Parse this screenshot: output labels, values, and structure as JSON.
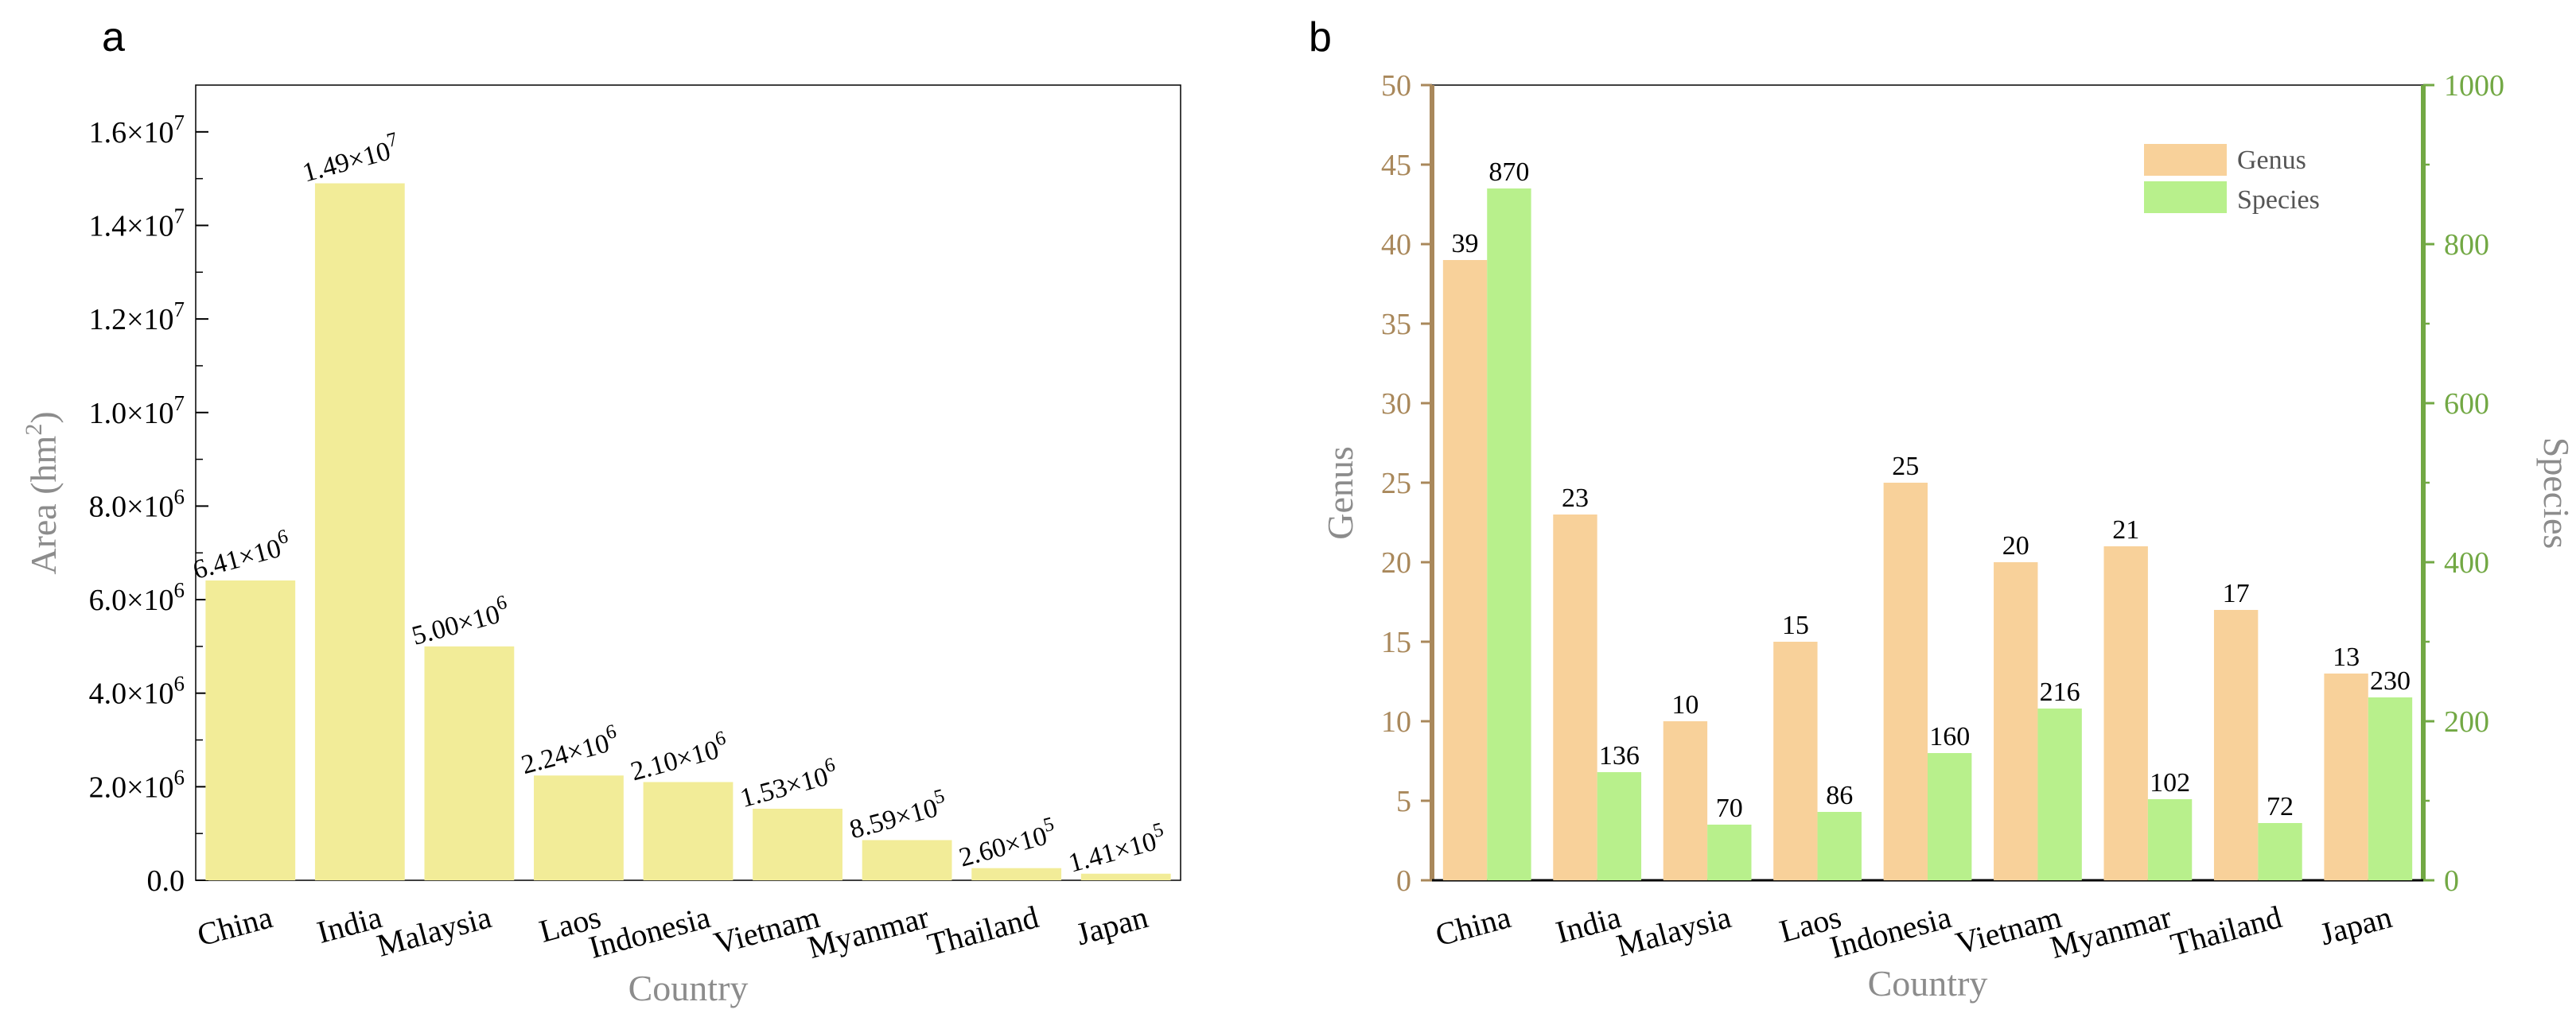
{
  "colors": {
    "area_bar": "#f2ec98",
    "genus_bar": "#f8d19a",
    "species_bar": "#b8f08c",
    "genus_axis": "#a9885b",
    "species_axis": "#72a844",
    "axis_title": "#8c8c8c"
  },
  "chart_data": [
    {
      "panel": "a",
      "type": "bar",
      "xlabel": "Country",
      "ylabel": "Area (hm²)",
      "ylim": [
        0,
        17000000
      ],
      "yticks": [
        {
          "value": 0,
          "label": "0.0",
          "exp": ""
        },
        {
          "value": 2000000,
          "label": "2.0×10",
          "exp": "6"
        },
        {
          "value": 4000000,
          "label": "4.0×10",
          "exp": "6"
        },
        {
          "value": 6000000,
          "label": "6.0×10",
          "exp": "6"
        },
        {
          "value": 8000000,
          "label": "8.0×10",
          "exp": "6"
        },
        {
          "value": 10000000,
          "label": "1.0×10",
          "exp": "7"
        },
        {
          "value": 12000000,
          "label": "1.2×10",
          "exp": "7"
        },
        {
          "value": 14000000,
          "label": "1.4×10",
          "exp": "7"
        },
        {
          "value": 16000000,
          "label": "1.6×10",
          "exp": "7"
        }
      ],
      "categories": [
        "China",
        "India",
        "Malaysia",
        "Laos",
        "Indonesia",
        "Vietnam",
        "Myanmar",
        "Thailand",
        "Japan"
      ],
      "values": [
        6410000,
        14900000,
        5000000,
        2240000,
        2100000,
        1530000,
        859000,
        260000,
        141000
      ],
      "value_labels": [
        {
          "base": "6.41×10",
          "exp": "6"
        },
        {
          "base": "1.49×10",
          "exp": "7"
        },
        {
          "base": "5.00×10",
          "exp": "6"
        },
        {
          "base": "2.24×10",
          "exp": "6"
        },
        {
          "base": "2.10×10",
          "exp": "6"
        },
        {
          "base": "1.53×10",
          "exp": "6"
        },
        {
          "base": "8.59×10",
          "exp": "5"
        },
        {
          "base": "2.60×10",
          "exp": "5"
        },
        {
          "base": "1.41×10",
          "exp": "5"
        }
      ]
    },
    {
      "panel": "b",
      "type": "bar",
      "xlabel": "Country",
      "ylabel_left": "Genus",
      "ylabel_right": "Species",
      "ylim_left": [
        0,
        50
      ],
      "ylim_right": [
        0,
        1000
      ],
      "yticks_left": [
        0,
        5,
        10,
        15,
        20,
        25,
        30,
        35,
        40,
        45,
        50
      ],
      "yticks_right": [
        0,
        200,
        400,
        600,
        800,
        1000
      ],
      "categories": [
        "China",
        "India",
        "Malaysia",
        "Laos",
        "Indonesia",
        "Vietnam",
        "Myanmar",
        "Thailand",
        "Japan"
      ],
      "series": [
        {
          "name": "Genus",
          "axis": "left",
          "values": [
            39,
            23,
            10,
            15,
            25,
            20,
            21,
            17,
            13
          ]
        },
        {
          "name": "Species",
          "axis": "right",
          "values": [
            870,
            136,
            70,
            86,
            160,
            216,
            102,
            72,
            230
          ]
        }
      ],
      "legend": "top-right"
    }
  ]
}
